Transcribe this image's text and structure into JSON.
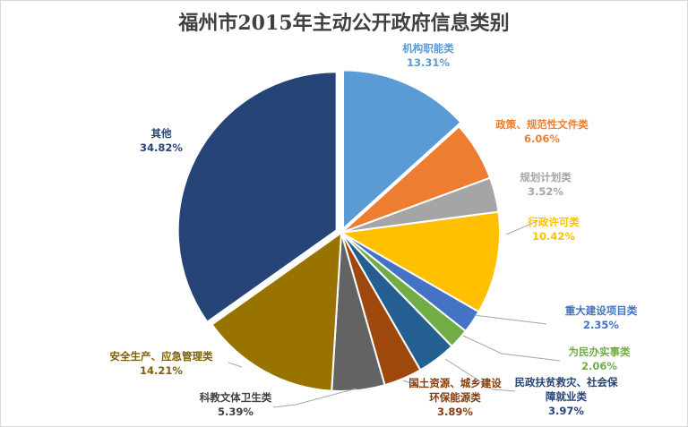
{
  "chart_data": {
    "type": "pie",
    "title": "福州市2015年主动公开政府信息类别",
    "slices": [
      {
        "label": "机构职能类",
        "value": 13.31,
        "display": "13.31%",
        "color": "#5b9bd5"
      },
      {
        "label": "政策、规范性文件类",
        "value": 6.06,
        "display": "6.06%",
        "color": "#ed7d31"
      },
      {
        "label": "规划计划类",
        "value": 3.52,
        "display": "3.52%",
        "color": "#a5a5a5"
      },
      {
        "label": "行政许可类",
        "value": 10.42,
        "display": "10.42%",
        "color": "#ffc000"
      },
      {
        "label": "重大建设项目类",
        "value": 2.35,
        "display": "2.35%",
        "color": "#4472c4"
      },
      {
        "label": "为民办实事类",
        "value": 2.06,
        "display": "2.06%",
        "color": "#70ad47"
      },
      {
        "label": "民政扶贫救灾、社会保障就业类",
        "value": 3.97,
        "display": "3.97%",
        "color": "#255e91"
      },
      {
        "label": "国土资源、城乡建设环保能源类",
        "value": 3.89,
        "display": "3.89%",
        "color": "#9e480e"
      },
      {
        "label": "科教文体卫生类",
        "value": 5.39,
        "display": "5.39%",
        "color": "#636363"
      },
      {
        "label": "安全生产、应急管理类",
        "value": 14.21,
        "display": "14.21%",
        "color": "#997300"
      },
      {
        "label": "其他",
        "value": 34.82,
        "display": "34.82%",
        "color": "#264478"
      }
    ],
    "legend": "none",
    "data_labels": true
  }
}
